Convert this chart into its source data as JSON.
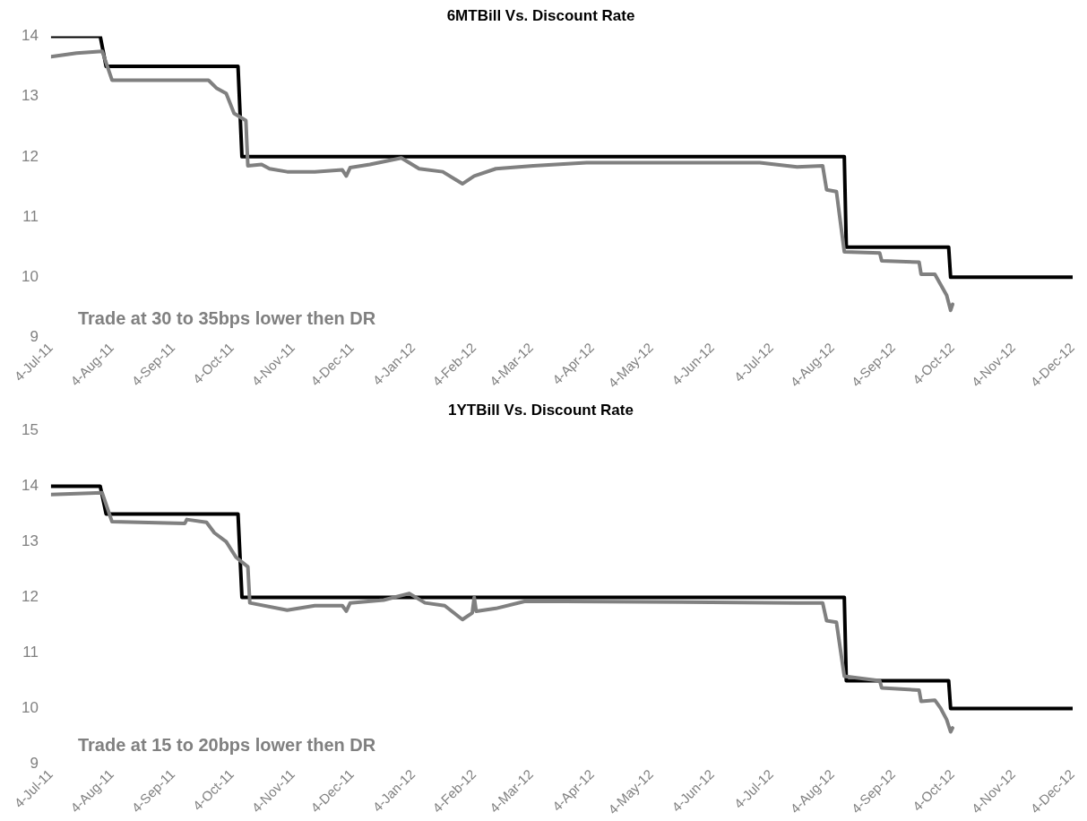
{
  "chart_data": [
    {
      "type": "line",
      "title": "6MTBill Vs. Discount Rate",
      "xlim": [
        "2011-07-04",
        "2012-12-04"
      ],
      "ylim": [
        9,
        14
      ],
      "yticks": [
        9,
        10,
        11,
        12,
        13,
        14
      ],
      "xticks": [
        {
          "value": "2011-07-04",
          "label": "4-Jul-11"
        },
        {
          "value": "2011-08-04",
          "label": "4-Aug-11"
        },
        {
          "value": "2011-09-04",
          "label": "4-Sep-11"
        },
        {
          "value": "2011-10-04",
          "label": "4-Oct-11"
        },
        {
          "value": "2011-11-04",
          "label": "4-Nov-11"
        },
        {
          "value": "2011-12-04",
          "label": "4-Dec-11"
        },
        {
          "value": "2012-01-04",
          "label": "4-Jan-12"
        },
        {
          "value": "2012-02-04",
          "label": "4-Feb-12"
        },
        {
          "value": "2012-03-04",
          "label": "4-Mar-12"
        },
        {
          "value": "2012-04-04",
          "label": "4-Apr-12"
        },
        {
          "value": "2012-05-04",
          "label": "4-May-12"
        },
        {
          "value": "2012-06-04",
          "label": "4-Jun-12"
        },
        {
          "value": "2012-07-04",
          "label": "4-Jul-12"
        },
        {
          "value": "2012-08-04",
          "label": "4-Aug-12"
        },
        {
          "value": "2012-09-04",
          "label": "4-Sep-12"
        },
        {
          "value": "2012-10-04",
          "label": "4-Oct-12"
        },
        {
          "value": "2012-11-04",
          "label": "4-Nov-12"
        },
        {
          "value": "2012-12-04",
          "label": "4-Dec-12"
        }
      ],
      "grid": false,
      "legend": false,
      "marker": "none",
      "line_style": "solid",
      "annotations": [
        "Trade at 30 to 35bps lower then DR"
      ],
      "series": [
        {
          "color": "#808080",
          "x": [
            "2011-07-04",
            "2011-07-17",
            "2011-07-30",
            "2011-08-04",
            "2011-09-22",
            "2011-09-26",
            "2011-10-01",
            "2011-10-05",
            "2011-10-11",
            "2011-10-12",
            "2011-10-19",
            "2011-10-23",
            "2011-11-01",
            "2011-11-15",
            "2011-11-29",
            "2011-12-01",
            "2011-12-03",
            "2011-12-13",
            "2011-12-29",
            "2012-01-07",
            "2012-01-19",
            "2012-01-29",
            "2012-02-04",
            "2012-02-15",
            "2012-03-05",
            "2012-04-01",
            "2012-06-28",
            "2012-07-17",
            "2012-07-30",
            "2012-08-01",
            "2012-08-06",
            "2012-08-10",
            "2012-08-28",
            "2012-08-29",
            "2012-09-17",
            "2012-09-18",
            "2012-09-25",
            "2012-10-01",
            "2012-10-03",
            "2012-10-04"
          ],
          "values": [
            13.66,
            13.72,
            13.75,
            13.27,
            13.27,
            13.14,
            13.05,
            12.72,
            12.6,
            11.85,
            11.87,
            11.8,
            11.75,
            11.75,
            11.78,
            11.68,
            11.82,
            11.87,
            11.98,
            11.8,
            11.75,
            11.55,
            11.68,
            11.8,
            11.85,
            11.9,
            11.9,
            11.83,
            11.85,
            11.45,
            11.42,
            10.42,
            10.4,
            10.27,
            10.25,
            10.05,
            10.05,
            9.7,
            9.45,
            9.55
          ]
        },
        {
          "color": "#000000",
          "x": [
            "2011-07-04",
            "2011-07-29",
            "2011-08-01",
            "2011-10-07",
            "2011-10-09",
            "2012-08-10",
            "2012-08-11",
            "2012-10-02",
            "2012-10-03",
            "2012-12-04"
          ],
          "values": [
            14,
            14,
            13.5,
            13.5,
            12,
            12,
            10.5,
            10.5,
            10,
            10
          ]
        }
      ]
    },
    {
      "type": "line",
      "title": "1YTBill Vs. Discount Rate",
      "xlim": [
        "2011-07-04",
        "2012-12-04"
      ],
      "ylim": [
        9,
        15
      ],
      "yticks": [
        9,
        10,
        11,
        12,
        13,
        14,
        15
      ],
      "xticks": [
        {
          "value": "2011-07-04",
          "label": "4-Jul-11"
        },
        {
          "value": "2011-08-04",
          "label": "4-Aug-11"
        },
        {
          "value": "2011-09-04",
          "label": "4-Sep-11"
        },
        {
          "value": "2011-10-04",
          "label": "4-Oct-11"
        },
        {
          "value": "2011-11-04",
          "label": "4-Nov-11"
        },
        {
          "value": "2011-12-04",
          "label": "4-Dec-11"
        },
        {
          "value": "2012-01-04",
          "label": "4-Jan-12"
        },
        {
          "value": "2012-02-04",
          "label": "4-Feb-12"
        },
        {
          "value": "2012-03-04",
          "label": "4-Mar-12"
        },
        {
          "value": "2012-04-04",
          "label": "4-Apr-12"
        },
        {
          "value": "2012-05-04",
          "label": "4-May-12"
        },
        {
          "value": "2012-06-04",
          "label": "4-Jun-12"
        },
        {
          "value": "2012-07-04",
          "label": "4-Jul-12"
        },
        {
          "value": "2012-08-04",
          "label": "4-Aug-12"
        },
        {
          "value": "2012-09-04",
          "label": "4-Sep-12"
        },
        {
          "value": "2012-10-04",
          "label": "4-Oct-12"
        },
        {
          "value": "2012-11-04",
          "label": "4-Nov-12"
        },
        {
          "value": "2012-12-04",
          "label": "4-Dec-12"
        }
      ],
      "grid": false,
      "legend": false,
      "marker": "none",
      "line_style": "solid",
      "annotations": [
        "Trade at 15 to 20bps lower then DR"
      ],
      "series": [
        {
          "color": "#808080",
          "x": [
            "2011-07-04",
            "2011-07-30",
            "2011-08-04",
            "2011-09-10",
            "2011-09-11",
            "2011-09-21",
            "2011-09-25",
            "2011-10-01",
            "2011-10-06",
            "2011-10-12",
            "2011-10-13",
            "2011-11-01",
            "2011-11-15",
            "2011-11-29",
            "2011-12-01",
            "2011-12-03",
            "2011-12-20",
            "2012-01-02",
            "2012-01-10",
            "2012-01-20",
            "2012-01-29",
            "2012-02-03",
            "2012-02-04",
            "2012-02-05",
            "2012-02-15",
            "2012-03-01",
            "2012-07-17",
            "2012-07-30",
            "2012-08-01",
            "2012-08-06",
            "2012-08-10",
            "2012-08-28",
            "2012-08-29",
            "2012-09-17",
            "2012-09-18",
            "2012-09-25",
            "2012-09-28",
            "2012-10-01",
            "2012-10-03",
            "2012-10-04"
          ],
          "values": [
            13.85,
            13.88,
            13.36,
            13.33,
            13.4,
            13.35,
            13.16,
            13.0,
            12.72,
            12.55,
            11.9,
            11.77,
            11.85,
            11.85,
            11.75,
            11.9,
            11.95,
            12.07,
            11.9,
            11.85,
            11.6,
            11.72,
            12.0,
            11.75,
            11.8,
            11.93,
            11.9,
            11.9,
            11.58,
            11.55,
            10.58,
            10.5,
            10.37,
            10.33,
            10.13,
            10.15,
            10.0,
            9.8,
            9.58,
            9.65
          ]
        },
        {
          "color": "#000000",
          "x": [
            "2011-07-04",
            "2011-07-29",
            "2011-08-01",
            "2011-10-07",
            "2011-10-09",
            "2012-08-10",
            "2012-08-11",
            "2012-10-02",
            "2012-10-03",
            "2012-12-04"
          ],
          "values": [
            14,
            14,
            13.5,
            13.5,
            12,
            12,
            10.5,
            10.5,
            10,
            10
          ]
        }
      ]
    }
  ]
}
